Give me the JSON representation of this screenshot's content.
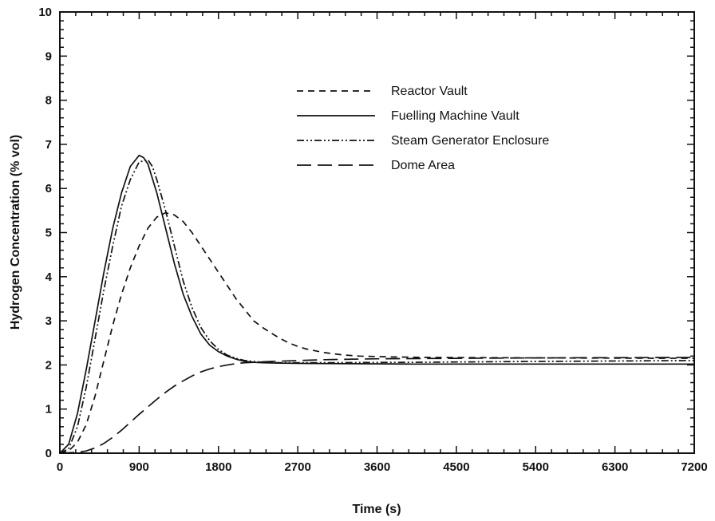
{
  "chart_data": {
    "type": "line",
    "title": "",
    "xlabel": "Time (s)",
    "ylabel": "Hydrogen Concentration (% vol)",
    "xlim": [
      0,
      7200
    ],
    "ylim": [
      0,
      10
    ],
    "xticks": [
      0,
      900,
      1800,
      2700,
      3600,
      4500,
      5400,
      6300,
      7200
    ],
    "yticks": [
      0,
      1,
      2,
      3,
      4,
      5,
      6,
      7,
      8,
      9,
      10
    ],
    "grid": false,
    "legend_position": "top-right",
    "series": [
      {
        "name": "Reactor Vault",
        "dash": "dashed",
        "x": [
          0,
          100,
          200,
          300,
          400,
          500,
          600,
          700,
          800,
          900,
          1000,
          1100,
          1200,
          1300,
          1400,
          1500,
          1600,
          1700,
          1800,
          1900,
          2000,
          2100,
          2200,
          2300,
          2400,
          2500,
          2600,
          2700,
          2800,
          3000,
          3200,
          3400,
          3600,
          3800,
          4200,
          5400,
          7200
        ],
        "y": [
          0,
          0.05,
          0.25,
          0.65,
          1.3,
          2.1,
          2.9,
          3.6,
          4.2,
          4.7,
          5.1,
          5.35,
          5.45,
          5.4,
          5.25,
          5.0,
          4.7,
          4.4,
          4.1,
          3.8,
          3.5,
          3.25,
          3.0,
          2.85,
          2.72,
          2.6,
          2.5,
          2.42,
          2.36,
          2.28,
          2.23,
          2.2,
          2.19,
          2.18,
          2.17,
          2.16,
          2.15
        ]
      },
      {
        "name": "Fuelling Machine Vault",
        "dash": "solid",
        "x": [
          0,
          100,
          200,
          300,
          400,
          500,
          600,
          700,
          800,
          900,
          950,
          1000,
          1100,
          1200,
          1300,
          1400,
          1500,
          1600,
          1700,
          1800,
          1900,
          2000,
          2100,
          2200,
          2300,
          2500,
          3000,
          4000,
          5400,
          7200
        ],
        "y": [
          0,
          0.2,
          0.9,
          1.9,
          3.0,
          4.1,
          5.1,
          5.9,
          6.5,
          6.75,
          6.7,
          6.55,
          5.9,
          5.1,
          4.3,
          3.6,
          3.1,
          2.7,
          2.45,
          2.3,
          2.2,
          2.13,
          2.08,
          2.06,
          2.05,
          2.04,
          2.03,
          2.02,
          2.02,
          2.02
        ]
      },
      {
        "name": "Steam Generator Enclosure",
        "dash": "dashdotdot",
        "x": [
          0,
          100,
          200,
          300,
          400,
          500,
          600,
          700,
          800,
          900,
          1000,
          1050,
          1100,
          1200,
          1300,
          1400,
          1500,
          1600,
          1700,
          1800,
          1900,
          2000,
          2100,
          2200,
          2300,
          2500,
          3000,
          4000,
          5400,
          7200
        ],
        "y": [
          0,
          0.1,
          0.6,
          1.5,
          2.6,
          3.7,
          4.7,
          5.6,
          6.2,
          6.6,
          6.65,
          6.5,
          6.2,
          5.5,
          4.7,
          3.9,
          3.3,
          2.85,
          2.55,
          2.35,
          2.22,
          2.15,
          2.1,
          2.08,
          2.06,
          2.05,
          2.05,
          2.06,
          2.08,
          2.1
        ]
      },
      {
        "name": "Dome Area",
        "dash": "longdash",
        "x": [
          0,
          200,
          300,
          400,
          500,
          600,
          700,
          800,
          900,
          1000,
          1100,
          1200,
          1300,
          1400,
          1500,
          1600,
          1700,
          1800,
          1900,
          2000,
          2100,
          2200,
          2400,
          2700,
          3000,
          3600,
          4500,
          5400,
          7200
        ],
        "y": [
          0,
          0.02,
          0.05,
          0.12,
          0.22,
          0.36,
          0.52,
          0.7,
          0.88,
          1.05,
          1.22,
          1.38,
          1.52,
          1.64,
          1.75,
          1.84,
          1.91,
          1.96,
          2.0,
          2.03,
          2.05,
          2.06,
          2.08,
          2.1,
          2.12,
          2.14,
          2.15,
          2.16,
          2.17
        ]
      }
    ]
  }
}
